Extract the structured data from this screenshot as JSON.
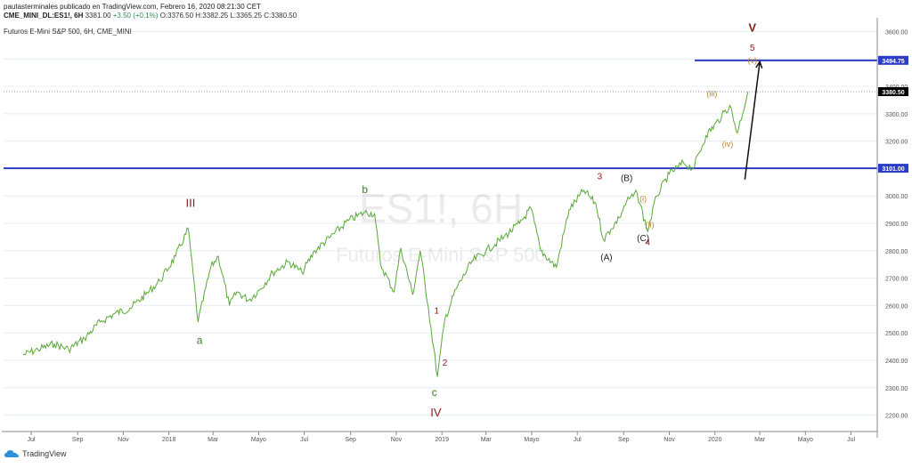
{
  "header": {
    "publisher_line": "pautasterminales publicado en TradingView.com, Febrero 16, 2020 08:21:30 CET",
    "symbol": "CME_MINI_DL:ES1!, 6H",
    "last": "3381.00",
    "change": "+3.50 (+0.1%)",
    "open": "O:3376.50",
    "high": "H:3382.25",
    "low": "L:3365.25",
    "close": "C:3380.50",
    "instrument": "Futuros E-Mini S&P 500, 6H, CME_MINI"
  },
  "watermark": {
    "symbol": "ES1!, 6H",
    "name": "Futuros E-Mini S&P 500"
  },
  "footer": {
    "brand": "TradingView",
    "logo_icon": "tradingview-cloud-icon"
  },
  "colors": {
    "price_line": "#5aa83a",
    "support_line": "#2c3cc8",
    "wave_red": "#8b1a1a",
    "wave_green": "#3a7a2a",
    "wave_orange": "#b8862b",
    "wave_black": "#222222",
    "price_tag": "#000000"
  },
  "chart_data": {
    "type": "line",
    "title": "Futuros E-Mini S&P 500, 6H, CME_MINI",
    "series": [
      {
        "x": [
          "2017-06-20",
          "2017-07-10",
          "2017-08-01",
          "2017-08-20",
          "2017-09-10",
          "2017-10-01",
          "2017-10-20",
          "2017-11-10",
          "2017-12-01",
          "2017-12-20",
          "2018-01-10",
          "2018-01-27",
          "2018-02-09",
          "2018-02-26",
          "2018-03-08",
          "2018-03-23",
          "2018-04-02",
          "2018-04-18",
          "2018-05-03",
          "2018-05-20",
          "2018-06-10",
          "2018-06-28",
          "2018-07-15",
          "2018-08-05",
          "2018-08-29",
          "2018-09-20",
          "2018-10-03",
          "2018-10-11",
          "2018-10-29",
          "2018-11-07",
          "2018-11-23",
          "2018-12-03",
          "2018-12-14",
          "2018-12-26",
          "2019-01-05",
          "2019-01-20",
          "2019-02-10",
          "2019-03-01",
          "2019-03-25",
          "2019-04-15",
          "2019-04-30",
          "2019-05-13",
          "2019-06-03",
          "2019-06-20",
          "2019-07-10",
          "2019-07-26",
          "2019-08-05",
          "2019-08-15",
          "2019-08-26",
          "2019-09-05",
          "2019-09-19",
          "2019-10-03",
          "2019-10-15",
          "2019-11-01",
          "2019-11-20",
          "2019-12-03",
          "2019-12-20",
          "2020-01-10",
          "2020-01-21",
          "2020-01-31",
          "2020-02-14"
        ],
        "y": [
          2420,
          2440,
          2460,
          2440,
          2480,
          2540,
          2570,
          2590,
          2640,
          2690,
          2780,
          2880,
          2540,
          2740,
          2780,
          2600,
          2650,
          2620,
          2660,
          2720,
          2760,
          2720,
          2800,
          2850,
          2910,
          2940,
          2935,
          2750,
          2650,
          2810,
          2640,
          2800,
          2590,
          2340,
          2550,
          2660,
          2760,
          2800,
          2850,
          2900,
          2955,
          2800,
          2740,
          2950,
          3020,
          2970,
          2840,
          2880,
          2920,
          2980,
          3010,
          2870,
          3000,
          3080,
          3120,
          3100,
          3220,
          3290,
          3330,
          3230,
          3380
        ]
      }
    ],
    "x_ticks": [
      "Jul",
      "Sep",
      "Nov",
      "2018",
      "Mar",
      "Mayo",
      "Jul",
      "Sep",
      "Nov",
      "2019",
      "Mar",
      "Mayo",
      "Jul",
      "Sep",
      "Nov",
      "2020",
      "Mar",
      "Mayo",
      "Jul"
    ],
    "y_ticks": [
      "3600.00",
      "3500.00",
      "3400.00",
      "3300.00",
      "3200.00",
      "3100.00",
      "3000.00",
      "2900.00",
      "2800.00",
      "2700.00",
      "2600.00",
      "2500.00",
      "2400.00",
      "2300.00",
      "2200.00"
    ],
    "ylim": [
      2150,
      3650
    ],
    "price_tags": [
      {
        "value": 3494.75,
        "label": "3494.75",
        "line": true
      },
      {
        "value": 3380.5,
        "label": "3380.50",
        "line": false
      },
      {
        "value": 3101.0,
        "label": "3101.00",
        "line": true
      }
    ],
    "annotations": [
      {
        "text": "V",
        "x": "2020-02-20",
        "y": 3600,
        "color": "wave_red",
        "size": 13,
        "bold": true
      },
      {
        "text": "5",
        "x": "2020-02-20",
        "y": 3530,
        "color": "wave_red",
        "size": 10
      },
      {
        "text": "(v)",
        "x": "2020-02-20",
        "y": 3485,
        "color": "wave_orange",
        "size": 9
      },
      {
        "text": "(iii)",
        "x": "2019-12-28",
        "y": 3363,
        "color": "wave_orange",
        "size": 9
      },
      {
        "text": "(iv)",
        "x": "2020-01-18",
        "y": 3180,
        "color": "wave_orange",
        "size": 9
      },
      {
        "text": "(B)",
        "x": "2019-09-05",
        "y": 3055,
        "color": "wave_black",
        "size": 10
      },
      {
        "text": "(i)",
        "x": "2019-09-27",
        "y": 2980,
        "color": "wave_orange",
        "size": 9
      },
      {
        "text": "(ii)",
        "x": "2019-10-06",
        "y": 2885,
        "color": "wave_orange",
        "size": 9
      },
      {
        "text": "(C)",
        "x": "2019-09-27",
        "y": 2835,
        "color": "wave_black",
        "size": 10
      },
      {
        "text": "4",
        "x": "2019-10-03",
        "y": 2820,
        "color": "wave_red",
        "size": 10
      },
      {
        "text": "3",
        "x": "2019-07-31",
        "y": 3060,
        "color": "wave_red",
        "size": 10
      },
      {
        "text": "(A)",
        "x": "2019-08-09",
        "y": 2765,
        "color": "wave_black",
        "size": 10
      },
      {
        "text": "b",
        "x": "2018-09-20",
        "y": 3010,
        "color": "wave_green",
        "size": 12
      },
      {
        "text": "III",
        "x": "2018-01-30",
        "y": 2960,
        "color": "wave_red",
        "size": 13
      },
      {
        "text": "a",
        "x": "2018-02-11",
        "y": 2460,
        "color": "wave_green",
        "size": 12
      },
      {
        "text": "1",
        "x": "2018-12-25",
        "y": 2570,
        "color": "wave_red",
        "size": 10
      },
      {
        "text": "2",
        "x": "2019-01-05",
        "y": 2380,
        "color": "wave_red",
        "size": 10
      },
      {
        "text": "c",
        "x": "2018-12-22",
        "y": 2270,
        "color": "wave_green",
        "size": 12
      },
      {
        "text": "IV",
        "x": "2018-12-24",
        "y": 2195,
        "color": "wave_red",
        "size": 13
      }
    ],
    "arrow": {
      "x1": "2020-02-10",
      "y1": 3060,
      "x2": "2020-03-01",
      "y2": 3490
    }
  }
}
